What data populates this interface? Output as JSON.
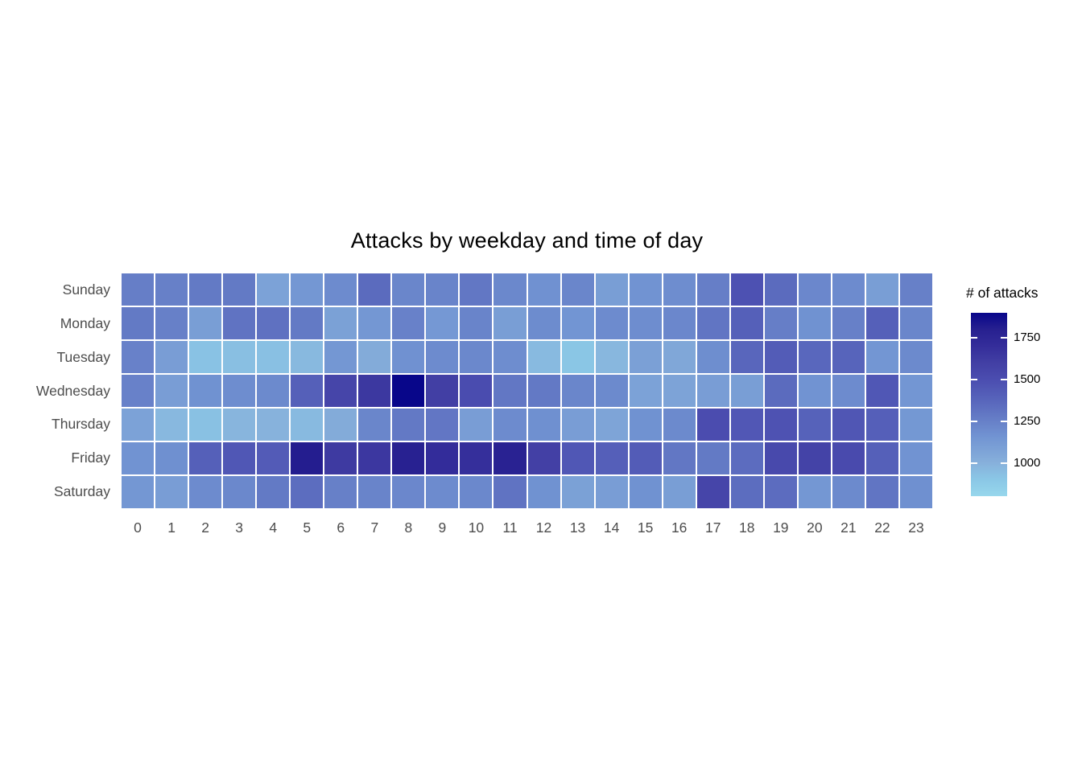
{
  "chart_data": {
    "type": "heatmap",
    "title": "Attacks by weekday and time of day",
    "xlabel": "",
    "ylabel": "",
    "x_ticks": [
      "0",
      "1",
      "2",
      "3",
      "4",
      "5",
      "6",
      "7",
      "8",
      "9",
      "10",
      "11",
      "12",
      "13",
      "14",
      "15",
      "16",
      "17",
      "18",
      "19",
      "20",
      "21",
      "22",
      "23"
    ],
    "y_categories": [
      "Sunday",
      "Monday",
      "Tuesday",
      "Wednesday",
      "Thursday",
      "Friday",
      "Saturday"
    ],
    "series": [
      {
        "name": "Sunday",
        "values": [
          1260,
          1250,
          1280,
          1280,
          1080,
          1140,
          1200,
          1350,
          1220,
          1230,
          1290,
          1210,
          1170,
          1220,
          1100,
          1160,
          1190,
          1260,
          1480,
          1350,
          1215,
          1200,
          1100,
          1250
        ]
      },
      {
        "name": "Monday",
        "values": [
          1280,
          1250,
          1100,
          1310,
          1320,
          1280,
          1085,
          1140,
          1245,
          1130,
          1230,
          1100,
          1195,
          1150,
          1200,
          1190,
          1215,
          1300,
          1400,
          1260,
          1165,
          1250,
          1400,
          1220
        ]
      },
      {
        "name": "Tuesday",
        "values": [
          1245,
          1105,
          920,
          935,
          930,
          960,
          1140,
          1030,
          1170,
          1200,
          1210,
          1190,
          955,
          905,
          970,
          1090,
          1050,
          1185,
          1370,
          1420,
          1365,
          1380,
          1145,
          1205
        ]
      },
      {
        "name": "Wednesday",
        "values": [
          1245,
          1105,
          1165,
          1190,
          1205,
          1400,
          1555,
          1640,
          1900,
          1600,
          1510,
          1290,
          1285,
          1220,
          1205,
          1080,
          1070,
          1105,
          1100,
          1350,
          1160,
          1200,
          1450,
          1145
        ]
      },
      {
        "name": "Thursday",
        "values": [
          1080,
          965,
          925,
          980,
          990,
          955,
          1030,
          1220,
          1285,
          1295,
          1105,
          1200,
          1175,
          1105,
          1065,
          1165,
          1205,
          1505,
          1445,
          1475,
          1390,
          1455,
          1405,
          1135
        ]
      },
      {
        "name": "Friday",
        "values": [
          1160,
          1175,
          1400,
          1450,
          1425,
          1810,
          1630,
          1645,
          1790,
          1705,
          1690,
          1785,
          1590,
          1450,
          1405,
          1420,
          1290,
          1280,
          1345,
          1530,
          1575,
          1525,
          1400,
          1160
        ]
      },
      {
        "name": "Saturday",
        "values": [
          1140,
          1105,
          1200,
          1210,
          1280,
          1340,
          1250,
          1230,
          1215,
          1200,
          1210,
          1310,
          1165,
          1085,
          1105,
          1165,
          1100,
          1560,
          1340,
          1345,
          1140,
          1205,
          1300,
          1175
        ]
      }
    ],
    "legend": {
      "title": "# of attacks",
      "ticks": [
        1750,
        1500,
        1250,
        1000
      ],
      "domain": [
        800,
        1900
      ],
      "position": "right"
    },
    "colorscale_stops": [
      [
        800,
        "#97d7ec"
      ],
      [
        900,
        "#8ac7e6"
      ],
      [
        1000,
        "#87b0db"
      ],
      [
        1160,
        "#7193d2"
      ],
      [
        1250,
        "#6780c8"
      ],
      [
        1400,
        "#5560b9"
      ],
      [
        1500,
        "#4b4db0"
      ],
      [
        1600,
        "#423fa4"
      ],
      [
        1700,
        "#342d9a"
      ],
      [
        1800,
        "#272090"
      ],
      [
        1900,
        "#08068a"
      ]
    ],
    "grid": false,
    "tile_gap_color": "#ffffff",
    "axis_text_color": "#4d4d4d"
  }
}
